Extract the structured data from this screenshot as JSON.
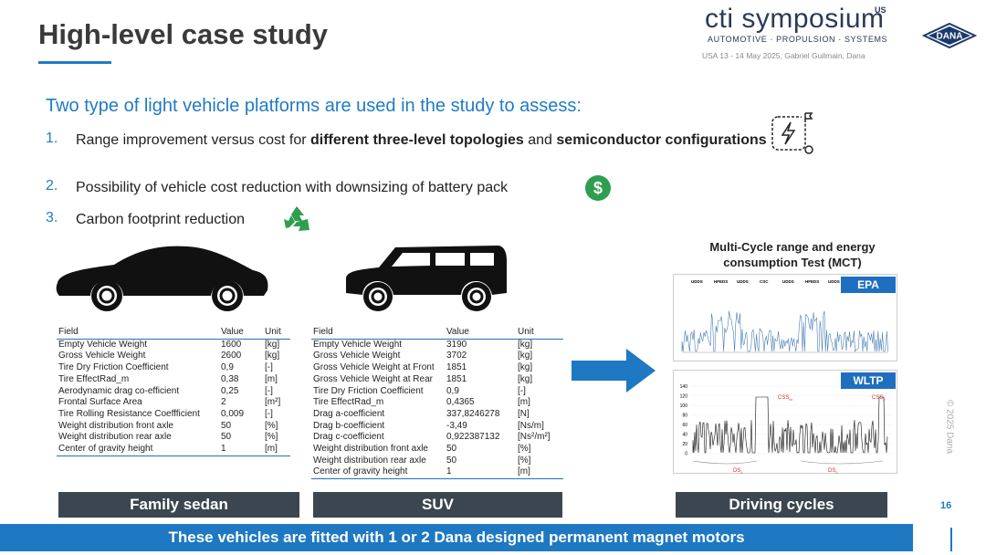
{
  "header": {
    "title": "High-level case study",
    "brand": "cti symposium",
    "brand_sup": "US",
    "tagline": "AUTOMOTIVE · PROPULSION · SYSTEMS",
    "event": "USA 13 - 14 May 2025, Gabriel Guilmain, Dana",
    "logo": "DANA"
  },
  "intro": "Two type of light vehicle platforms are used in the study to assess:",
  "items": [
    {
      "number": "1.",
      "parts": [
        {
          "text": "Range improvement versus cost for "
        },
        {
          "text": "different three-level topologies",
          "bold": true
        },
        {
          "text": " and "
        },
        {
          "text": "semiconductor configurations",
          "bold": true
        }
      ]
    },
    {
      "number": "2.",
      "parts": [
        {
          "text": "Possibility of vehicle cost reduction with downsizing of battery pack"
        }
      ]
    },
    {
      "number": "3.",
      "parts": [
        {
          "text": "Carbon footprint reduction"
        }
      ]
    }
  ],
  "sedan": {
    "columns": [
      "Field",
      "Value",
      "Unit"
    ],
    "rows": [
      [
        "Empty Vehicle Weight",
        "1600",
        "[kg]"
      ],
      [
        "Gross Vehicle Weight",
        "2600",
        "[kg]"
      ],
      [
        "Tire Dry Friction Coefficient",
        "0,9",
        "[-]"
      ],
      [
        "Tire EffectRad_m",
        "0,38",
        "[m]"
      ],
      [
        "Aerodynamic drag co-efficient",
        "0,25",
        "[-]"
      ],
      [
        "Frontal Surface Area",
        "2",
        "[m²]"
      ],
      [
        "Tire Rolling Resistance Coeffficient",
        "0,009",
        "[-]"
      ],
      [
        "Weight distribution front axle",
        "50",
        "[%]"
      ],
      [
        "Weight distribution rear axle",
        "50",
        "[%]"
      ],
      [
        "Center of gravity height",
        "1",
        "[m]"
      ]
    ],
    "label": "Family sedan"
  },
  "suv": {
    "columns": [
      "Field",
      "Value",
      "Unit"
    ],
    "rows": [
      [
        "Empty Vehicle Weight",
        "3190",
        "[kg]"
      ],
      [
        "Gross Vehicle Weight",
        "3702",
        "[kg]"
      ],
      [
        "Gross Vehicle Weight at Front",
        "1851",
        "[kg]"
      ],
      [
        "Gross Vehicle Weight at Rear",
        "1851",
        "[kg]"
      ],
      [
        "Tire Dry Friction Coefficient",
        "0,9",
        "[-]"
      ],
      [
        "Tire EffectRad_m",
        "0,4365",
        "[m]"
      ],
      [
        "Drag a-coefficient",
        "337,8246278",
        "[N]"
      ],
      [
        "Drag b-coefficient",
        "-3,49",
        "[Ns/m]"
      ],
      [
        "Drag c-coefficient",
        "0,922387132",
        "[Ns²/m²]"
      ],
      [
        "Weight distribution front axle",
        "50",
        "[%]"
      ],
      [
        "Weight distribution rear axle",
        "50",
        "[%]"
      ],
      [
        "Center of gravity height",
        "1",
        "[m]"
      ]
    ],
    "label": "SUV"
  },
  "cycles": {
    "title": "Multi-Cycle range and energy consumption Test (MCT)",
    "epa": {
      "tag": "EPA",
      "segments": [
        "UDDS",
        "HFEDS",
        "UDDS",
        "CSC",
        "UDDS",
        "HFEDS",
        "UDDS"
      ]
    },
    "wltp": {
      "tag": "WLTP",
      "yticks": [
        "140",
        "120",
        "100",
        "80",
        "60",
        "40",
        "20",
        "0"
      ],
      "marks": [
        "CSS",
        "M",
        "CSS",
        "E"
      ],
      "phases": [
        "DS",
        "1",
        "DS",
        "2"
      ]
    },
    "label": "Driving cycles"
  },
  "banner": "These vehicles are fitted with 1 or 2 Dana designed permanent magnet motors",
  "page_number": "16",
  "copyright": "© 2025 Dana"
}
